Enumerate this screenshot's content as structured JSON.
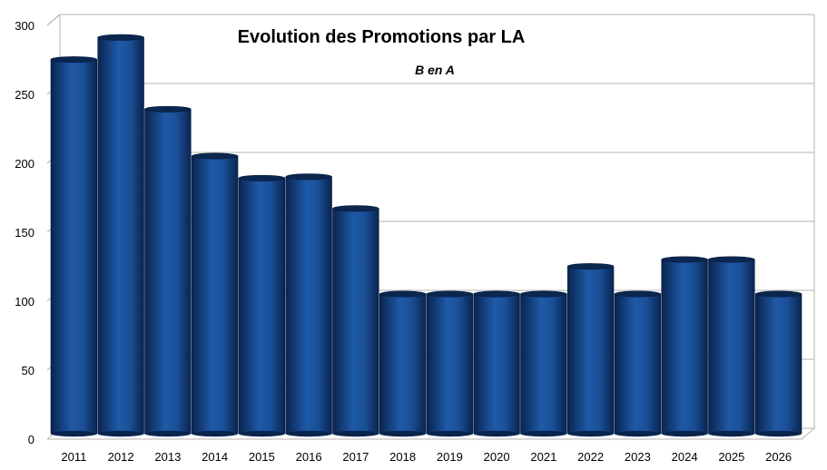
{
  "chart_data": {
    "type": "bar",
    "title": "Evolution des Promotions par LA",
    "subtitle": "B en A",
    "xlabel": "",
    "ylabel": "",
    "categories": [
      "2011",
      "2012",
      "2013",
      "2014",
      "2015",
      "2016",
      "2017",
      "2018",
      "2019",
      "2020",
      "2021",
      "2022",
      "2023",
      "2024",
      "2025",
      "2026"
    ],
    "values": [
      270,
      286,
      234,
      200,
      184,
      185,
      162,
      100,
      100,
      100,
      100,
      120,
      100,
      125,
      125,
      100
    ],
    "ylim": [
      0,
      300
    ],
    "yticks": [
      0,
      50,
      100,
      150,
      200,
      250,
      300
    ],
    "grid": true,
    "legend": "none",
    "colors": {
      "bar_dark": "#0a2a5e",
      "bar_mid": "#1a4f96",
      "bar_light": "#2d6bbd",
      "bar_top": "#0b2750",
      "grid": "#b3b3b3",
      "wall_side": "#d9d9d9"
    }
  }
}
